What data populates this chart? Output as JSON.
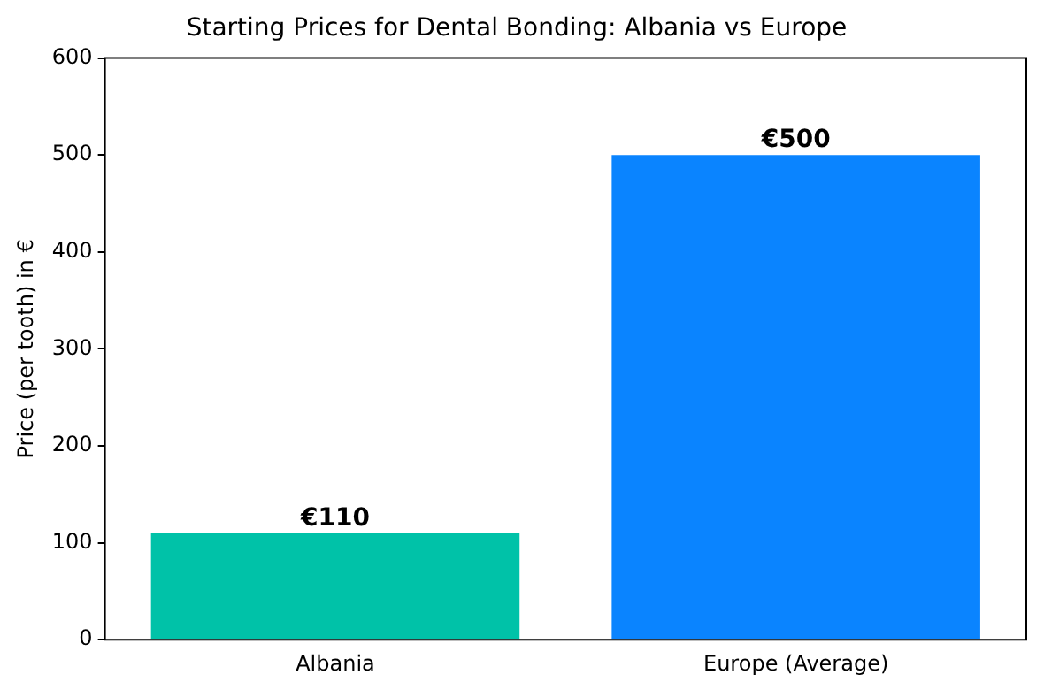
{
  "chart_data": {
    "type": "bar",
    "title": "Starting Prices for Dental Bonding: Albania vs Europe",
    "ylabel": "Price (per tooth) in €",
    "categories": [
      "Albania",
      "Europe (Average)"
    ],
    "values": [
      110,
      500
    ],
    "colors": [
      "#00c2a8",
      "#0a84ff"
    ],
    "value_labels": [
      "€110",
      "€500"
    ],
    "ylim": [
      0,
      600
    ],
    "yticks": [
      0,
      100,
      200,
      300,
      400,
      500,
      600
    ],
    "grid": false,
    "legend": false
  }
}
